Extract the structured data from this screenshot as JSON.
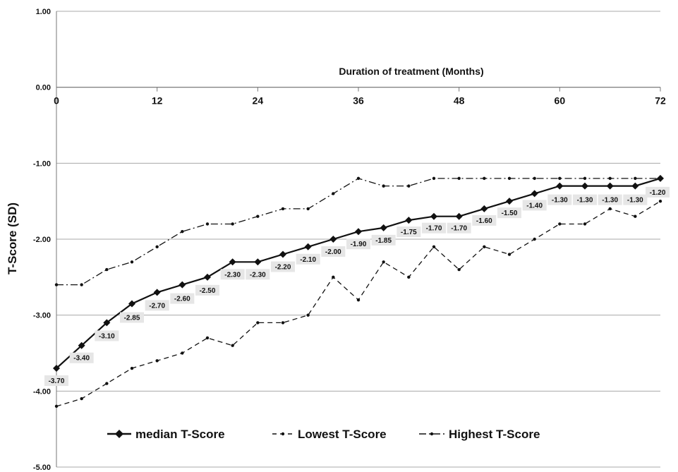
{
  "chart_data": {
    "type": "line",
    "title": "",
    "xlabel": "Duration of treatment (Months)",
    "ylabel": "T-Score (SD)",
    "ylim": [
      -5,
      1
    ],
    "xlim": [
      0,
      72
    ],
    "y_ticks": [
      "1.00",
      "0.00",
      "-1.00",
      "-2.00",
      "-3.00",
      "-4.00",
      "-5.00"
    ],
    "x_ticks": [
      "0",
      "12",
      "24",
      "36",
      "48",
      "60",
      "72"
    ],
    "grid": "horizontal",
    "legend_position": "bottom",
    "x": [
      0,
      3,
      6,
      9,
      12,
      15,
      18,
      21,
      24,
      27,
      30,
      33,
      36,
      39,
      42,
      45,
      48,
      51,
      54,
      57,
      60,
      63,
      66,
      69,
      72
    ],
    "series": [
      {
        "name": "median T-Score",
        "style": "solid-diamond",
        "values": [
          -3.7,
          -3.4,
          -3.1,
          -2.85,
          -2.7,
          -2.6,
          -2.5,
          -2.3,
          -2.3,
          -2.2,
          -2.1,
          -2.0,
          -1.9,
          -1.85,
          -1.75,
          -1.7,
          -1.7,
          -1.6,
          -1.5,
          -1.4,
          -1.3,
          -1.3,
          -1.3,
          -1.3,
          -1.2
        ],
        "labels": [
          "-3.70",
          "-3.40",
          "-3.10",
          "-2.85",
          "-2.70",
          "-2.60",
          "-2.50",
          "-2.30",
          "-2.30",
          "-2.20",
          "-2.10",
          "-2.00",
          "-1.90",
          "-1.85",
          "-1.75",
          "-1.70",
          "-1.70",
          "-1.60",
          "-1.50",
          "-1.40",
          "-1.30",
          "-1.30",
          "-1.30",
          "-1.30",
          "-1.20"
        ]
      },
      {
        "name": "Lowest T-Score",
        "style": "dashed",
        "values": [
          -4.2,
          -4.1,
          -3.9,
          -3.7,
          -3.6,
          -3.5,
          -3.3,
          -3.4,
          -3.1,
          -3.1,
          -3.0,
          -2.5,
          -2.8,
          -2.3,
          -2.5,
          -2.1,
          -2.4,
          -2.1,
          -2.2,
          -2.0,
          -1.8,
          -1.8,
          -1.6,
          -1.7,
          -1.5
        ]
      },
      {
        "name": "Highest T-Score",
        "style": "dash-dot",
        "values": [
          -2.6,
          -2.6,
          -2.4,
          -2.3,
          -2.1,
          -1.9,
          -1.8,
          -1.8,
          -1.7,
          -1.6,
          -1.6,
          -1.4,
          -1.2,
          -1.3,
          -1.3,
          -1.2,
          -1.2,
          -1.2,
          -1.2,
          -1.2,
          -1.2,
          -1.2,
          -1.2,
          -1.2,
          -1.2
        ]
      }
    ]
  }
}
